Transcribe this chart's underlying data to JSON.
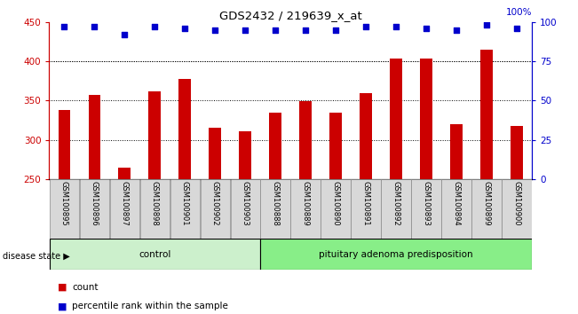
{
  "title": "GDS2432 / 219639_x_at",
  "categories": [
    "GSM100895",
    "GSM100896",
    "GSM100897",
    "GSM100898",
    "GSM100901",
    "GSM100902",
    "GSM100903",
    "GSM100888",
    "GSM100889",
    "GSM100890",
    "GSM100891",
    "GSM100892",
    "GSM100893",
    "GSM100894",
    "GSM100899",
    "GSM100900"
  ],
  "bar_values": [
    338,
    357,
    265,
    362,
    378,
    315,
    311,
    334,
    349,
    334,
    359,
    403,
    403,
    320,
    415,
    318
  ],
  "percentile_values": [
    97,
    97,
    92,
    97,
    96,
    95,
    95,
    95,
    95,
    95,
    97,
    97,
    96,
    95,
    98,
    96
  ],
  "control_count": 7,
  "disease_count": 9,
  "group1_label": "control",
  "group2_label": "pituitary adenoma predisposition",
  "ylim_left": [
    250,
    450
  ],
  "ylim_right": [
    0,
    100
  ],
  "yticks_left": [
    250,
    300,
    350,
    400,
    450
  ],
  "yticks_right": [
    0,
    25,
    50,
    75,
    100
  ],
  "bar_color": "#CC0000",
  "dot_color": "#0000CC",
  "control_bg": "#ccf0cc",
  "disease_bg": "#88ee88",
  "xlabel_color": "#CC0000",
  "ylabel_right_color": "#0000CC",
  "disease_state_label": "disease state",
  "legend_count_label": "count",
  "legend_percentile_label": "percentile rank within the sample",
  "grid_lines": [
    300,
    350,
    400
  ],
  "bar_width": 0.4
}
